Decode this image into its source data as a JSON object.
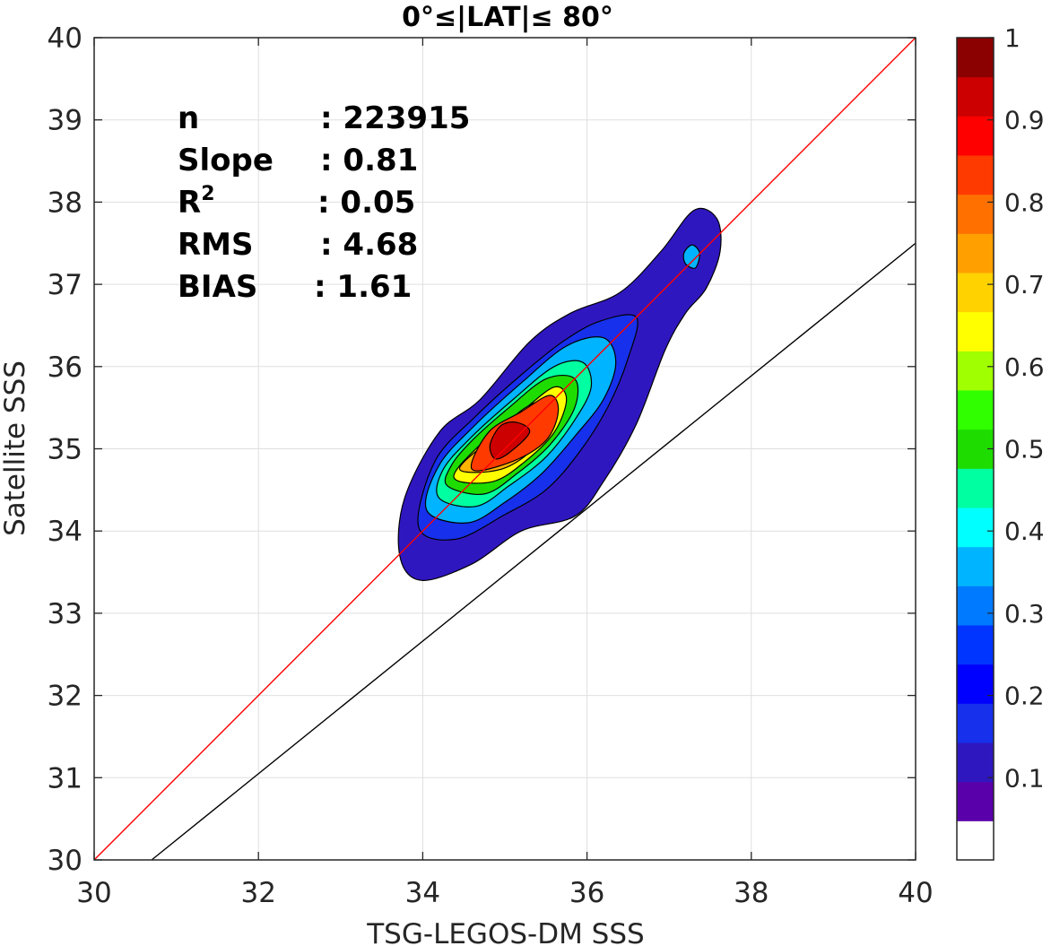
{
  "chart_data": {
    "type": "heatmap",
    "title": "0°≤|LAT|≤ 80°",
    "xlabel": "TSG-LEGOS-DM SSS",
    "ylabel": "Satellite SSS",
    "xlim": [
      30,
      40
    ],
    "ylim": [
      30,
      40
    ],
    "grid": true,
    "xticks": [
      "30",
      "32",
      "34",
      "36",
      "38",
      "40"
    ],
    "yticks": [
      "30",
      "31",
      "32",
      "33",
      "34",
      "35",
      "36",
      "37",
      "38",
      "39",
      "40"
    ],
    "stats": [
      {
        "label": "n",
        "value": ": 223915"
      },
      {
        "label": "Slope",
        "value": ": 0.81"
      },
      {
        "label": "R",
        "sup": "2",
        "value": ": 0.05"
      },
      {
        "label": "RMS",
        "value": ": 4.68"
      },
      {
        "label": "BIAS",
        "value": ": 1.61"
      }
    ],
    "one_to_one_line": {
      "color": "#ff0000",
      "from": [
        30,
        30
      ],
      "to": [
        40,
        40
      ]
    },
    "regression_line": {
      "color": "#000000",
      "from": [
        30.7,
        30
      ],
      "to": [
        40,
        37.5
      ]
    },
    "density_contours": [
      {
        "level": 0.05,
        "color": "#2f17c0",
        "points": [
          [
            33.72,
            33.7
          ],
          [
            33.98,
            33.4
          ],
          [
            34.6,
            33.6
          ],
          [
            35.2,
            34.0
          ],
          [
            35.85,
            34.18
          ],
          [
            36.2,
            34.6
          ],
          [
            36.6,
            35.3
          ],
          [
            36.95,
            36.2
          ],
          [
            37.2,
            36.65
          ],
          [
            37.45,
            36.95
          ],
          [
            37.62,
            37.4
          ],
          [
            37.58,
            37.8
          ],
          [
            37.3,
            37.9
          ],
          [
            36.9,
            37.4
          ],
          [
            36.4,
            36.9
          ],
          [
            35.8,
            36.65
          ],
          [
            35.3,
            36.3
          ],
          [
            34.7,
            35.6
          ],
          [
            34.2,
            35.2
          ],
          [
            33.78,
            34.4
          ]
        ]
      },
      {
        "level": 0.1,
        "color": "#1630eb",
        "points": [
          [
            33.95,
            34.05
          ],
          [
            34.4,
            33.9
          ],
          [
            35.0,
            34.2
          ],
          [
            35.5,
            34.5
          ],
          [
            35.9,
            34.95
          ],
          [
            36.25,
            35.5
          ],
          [
            36.5,
            36.1
          ],
          [
            36.6,
            36.6
          ],
          [
            36.15,
            36.55
          ],
          [
            35.7,
            36.3
          ],
          [
            35.2,
            35.9
          ],
          [
            34.65,
            35.4
          ],
          [
            34.15,
            34.85
          ]
        ]
      },
      {
        "level": 0.3,
        "color": "#00b4ff",
        "points": [
          [
            34.05,
            34.25
          ],
          [
            34.55,
            34.1
          ],
          [
            35.0,
            34.35
          ],
          [
            35.45,
            34.7
          ],
          [
            35.85,
            35.15
          ],
          [
            36.2,
            35.6
          ],
          [
            36.35,
            36.05
          ],
          [
            36.2,
            36.35
          ],
          [
            35.75,
            36.25
          ],
          [
            35.2,
            35.8
          ],
          [
            34.65,
            35.3
          ],
          [
            34.2,
            34.8
          ]
        ]
      },
      {
        "level": 0.45,
        "color": "#00ffa0",
        "points": [
          [
            34.2,
            34.4
          ],
          [
            34.65,
            34.3
          ],
          [
            35.05,
            34.55
          ],
          [
            35.5,
            34.9
          ],
          [
            35.85,
            35.35
          ],
          [
            36.05,
            35.75
          ],
          [
            35.95,
            36.05
          ],
          [
            35.6,
            36.0
          ],
          [
            35.1,
            35.6
          ],
          [
            34.6,
            35.15
          ],
          [
            34.25,
            34.75
          ]
        ]
      },
      {
        "level": 0.55,
        "color": "#1edc00",
        "points": [
          [
            34.3,
            34.55
          ],
          [
            34.75,
            34.45
          ],
          [
            35.15,
            34.7
          ],
          [
            35.55,
            35.05
          ],
          [
            35.85,
            35.5
          ],
          [
            35.85,
            35.85
          ],
          [
            35.5,
            35.85
          ],
          [
            35.05,
            35.5
          ],
          [
            34.6,
            35.1
          ],
          [
            34.35,
            34.8
          ]
        ]
      },
      {
        "level": 0.65,
        "color": "#ffff00",
        "points": [
          [
            34.38,
            34.65
          ],
          [
            34.85,
            34.6
          ],
          [
            35.25,
            34.85
          ],
          [
            35.6,
            35.2
          ],
          [
            35.75,
            35.6
          ],
          [
            35.6,
            35.75
          ],
          [
            35.2,
            35.45
          ],
          [
            34.7,
            35.05
          ]
        ]
      },
      {
        "level": 0.75,
        "color": "#ffb400",
        "points": [
          [
            34.45,
            34.75
          ],
          [
            34.95,
            34.75
          ],
          [
            35.35,
            35.0
          ],
          [
            35.6,
            35.35
          ],
          [
            35.6,
            35.6
          ],
          [
            35.25,
            35.5
          ],
          [
            34.8,
            35.1
          ]
        ]
      },
      {
        "level": 0.85,
        "color": "#ff3a00",
        "points": [
          [
            34.6,
            34.75
          ],
          [
            35.1,
            34.85
          ],
          [
            35.5,
            35.1
          ],
          [
            35.65,
            35.45
          ],
          [
            35.55,
            35.65
          ],
          [
            35.2,
            35.45
          ],
          [
            34.8,
            35.2
          ]
        ]
      },
      {
        "level": 0.95,
        "color": "#cc0000",
        "points": [
          [
            34.88,
            34.88
          ],
          [
            35.05,
            34.95
          ],
          [
            35.3,
            35.2
          ],
          [
            35.15,
            35.32
          ],
          [
            34.95,
            35.28
          ],
          [
            34.82,
            35.05
          ]
        ]
      },
      {
        "level": 0.3,
        "color": "#00b4ff",
        "points": [
          [
            37.2,
            37.25
          ],
          [
            37.32,
            37.2
          ],
          [
            37.37,
            37.38
          ],
          [
            37.28,
            37.48
          ],
          [
            37.18,
            37.38
          ]
        ]
      }
    ],
    "colorbar": {
      "ticks": [
        "0.1",
        "0.2",
        "0.3",
        "0.4",
        "0.5",
        "0.6",
        "0.7",
        "0.8",
        "0.9",
        "1"
      ],
      "range": [
        0,
        1
      ],
      "colors": [
        "#ffffff",
        "#5a00aa",
        "#2f17c0",
        "#1630eb",
        "#0000ff",
        "#0035ff",
        "#007aff",
        "#00b4ff",
        "#00ffff",
        "#00ffa0",
        "#1edc00",
        "#30ff00",
        "#a0ff00",
        "#ffff00",
        "#ffd200",
        "#ffa000",
        "#ff7000",
        "#ff3a00",
        "#ff0000",
        "#cc0000",
        "#8b0000"
      ]
    }
  }
}
